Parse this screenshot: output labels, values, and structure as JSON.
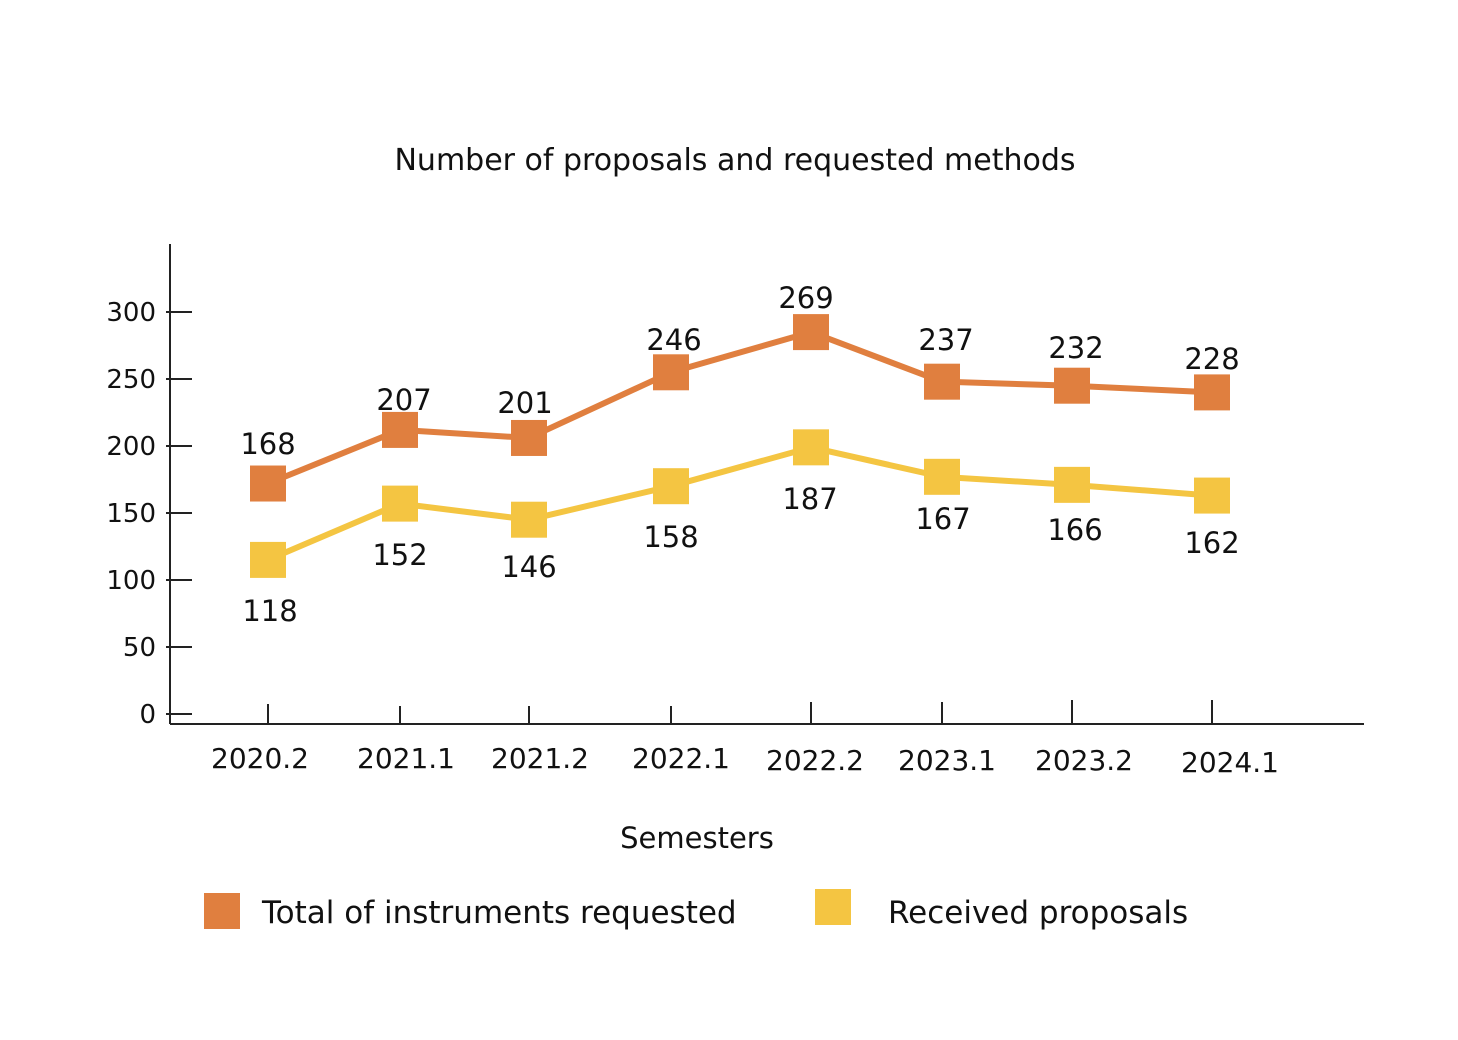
{
  "chart_data": {
    "type": "line",
    "title": "Number of proposals and requested methods",
    "xlabel": "Semesters",
    "ylabel": "",
    "categories": [
      "2020.2",
      "2021.1",
      "2021.2",
      "2022.1",
      "2022.2",
      "2023.1",
      "2023.2",
      "2024.1"
    ],
    "ylim": [
      0,
      340
    ],
    "yticks": [
      0,
      50,
      100,
      150,
      200,
      250,
      300
    ],
    "grid": false,
    "legend_position": "bottom",
    "series": [
      {
        "name": "Total of instruments requested",
        "color": "#e07f3f",
        "marker": "square",
        "values": [
          168,
          207,
          201,
          246,
          269,
          237,
          232,
          228
        ],
        "plotted_values": [
          172,
          212,
          206,
          255,
          285,
          248,
          245,
          240
        ]
      },
      {
        "name": "Received proposals",
        "color": "#f4c542",
        "marker": "square",
        "values": [
          118,
          152,
          146,
          158,
          187,
          167,
          166,
          162
        ],
        "plotted_values": [
          115,
          157,
          145,
          170,
          199,
          177,
          171,
          163
        ]
      }
    ]
  }
}
